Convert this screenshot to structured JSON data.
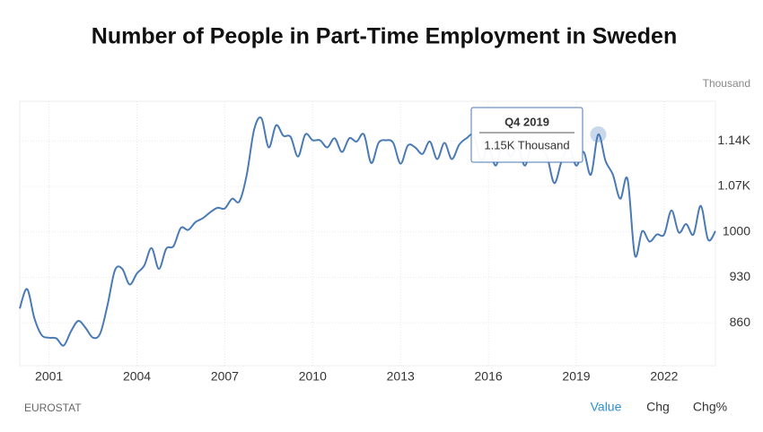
{
  "chart_data": {
    "type": "line",
    "title": "Number of People in Part-Time Employment in Sweden",
    "unit": "Thousand",
    "x": [
      2000,
      2000.25,
      2000.5,
      2000.75,
      2001,
      2001.25,
      2001.5,
      2001.75,
      2002,
      2002.25,
      2002.5,
      2002.75,
      2003,
      2003.25,
      2003.5,
      2003.75,
      2004,
      2004.25,
      2004.5,
      2004.75,
      2005,
      2005.25,
      2005.5,
      2005.75,
      2006,
      2006.25,
      2006.5,
      2006.75,
      2007,
      2007.25,
      2007.5,
      2007.75,
      2008,
      2008.25,
      2008.5,
      2008.75,
      2009,
      2009.25,
      2009.5,
      2009.75,
      2010,
      2010.25,
      2010.5,
      2010.75,
      2011,
      2011.25,
      2011.5,
      2011.75,
      2012,
      2012.25,
      2012.5,
      2012.75,
      2013,
      2013.25,
      2013.5,
      2013.75,
      2014,
      2014.25,
      2014.5,
      2014.75,
      2015,
      2015.25,
      2015.5,
      2015.75,
      2016,
      2016.25,
      2016.5,
      2016.75,
      2017,
      2017.25,
      2017.5,
      2017.75,
      2018,
      2018.25,
      2018.5,
      2018.75,
      2019,
      2019.25,
      2019.5,
      2019.75,
      2020,
      2020.25,
      2020.5,
      2020.75,
      2021,
      2021.25,
      2021.5,
      2021.75,
      2022,
      2022.25,
      2022.5,
      2022.75,
      2023,
      2023.25,
      2023.5,
      2023.75
    ],
    "series": [
      {
        "color": "#4a7ab5",
        "values": [
          882,
          912,
          867,
          841,
          837,
          836,
          825,
          847,
          863,
          852,
          837,
          844,
          888,
          941,
          943,
          919,
          936,
          948,
          975,
          943,
          974,
          978,
          1006,
          1003,
          1015,
          1021,
          1030,
          1037,
          1036,
          1051,
          1047,
          1088,
          1157,
          1175,
          1130,
          1164,
          1148,
          1146,
          1116,
          1150,
          1141,
          1141,
          1130,
          1144,
          1123,
          1144,
          1139,
          1150,
          1106,
          1137,
          1141,
          1137,
          1105,
          1133,
          1130,
          1120,
          1139,
          1112,
          1137,
          1112,
          1134,
          1144,
          1148,
          1109,
          1130,
          1102,
          1137,
          1116,
          1130,
          1102,
          1137,
          1130,
          1116,
          1075,
          1109,
          1130,
          1102,
          1123,
          1088,
          1150,
          1109,
          1088,
          1051,
          1081,
          964,
          1001,
          985,
          996,
          996,
          1033,
          999,
          1012,
          996,
          1040,
          988,
          1001
        ]
      }
    ],
    "xlim": [
      2000,
      2023.75
    ],
    "xticks": [
      2001,
      2004,
      2007,
      2010,
      2013,
      2016,
      2019,
      2022
    ],
    "ylim": [
      794,
      1201
    ],
    "yticks": [
      860,
      930,
      1000,
      {
        "value": 1070,
        "label": "1.07K"
      },
      {
        "value": 1140,
        "label": "1.14K"
      }
    ],
    "grid": true,
    "tooltip": {
      "title": "Q4 2019",
      "text": "1.15K Thousand"
    },
    "source": "EUROSTAT",
    "tabs": [
      "Value",
      "Chg",
      "Chg%"
    ]
  }
}
